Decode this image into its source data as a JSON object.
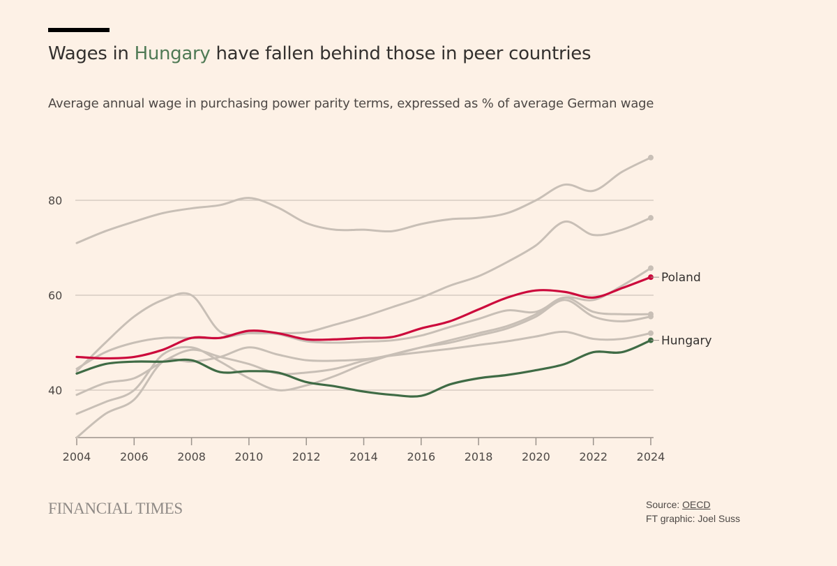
{
  "header": {
    "title_pre": "Wages in ",
    "title_highlight": "Hungary",
    "title_post": " have fallen behind those in peer countries",
    "subtitle": "Average annual wage in purchasing power parity terms, expressed as % of average German wage"
  },
  "footer": {
    "logo": "FINANCIAL TIMES",
    "source_label": "Source: ",
    "source_link": "OECD",
    "credit": "FT graphic: Joel Suss"
  },
  "chart_data": {
    "type": "line",
    "title": "Wages in Hungary have fallen behind those in peer countries",
    "subtitle": "Average annual wage in purchasing power parity terms, expressed as % of average German wage",
    "x": [
      2004,
      2005,
      2006,
      2007,
      2008,
      2009,
      2010,
      2011,
      2012,
      2013,
      2014,
      2015,
      2016,
      2017,
      2018,
      2019,
      2020,
      2021,
      2022,
      2023,
      2024
    ],
    "xticks": [
      "2004",
      "2006",
      "2008",
      "2010",
      "2012",
      "2014",
      "2016",
      "2018",
      "2020",
      "2022",
      "2024"
    ],
    "yticks": [
      "40",
      "60",
      "80"
    ],
    "ylim": [
      30,
      90
    ],
    "grid": true,
    "colors": {
      "highlight_hungary": "#3f6b45",
      "highlight_poland": "#cc0a3c",
      "other": "#c8bfb6",
      "title_highlight": "#4f7a55"
    },
    "series": [
      {
        "values": [
          71,
          73.5,
          75.5,
          77.3,
          78.3,
          79,
          80.5,
          78.5,
          75.2,
          73.8,
          73.8,
          73.5,
          75,
          76,
          76.3,
          77.3,
          80,
          83.3,
          82,
          86,
          89
        ]
      },
      {
        "values": [
          44,
          50,
          55.5,
          59,
          60,
          52.3,
          52,
          52,
          52.2,
          53.8,
          55.5,
          57.5,
          59.5,
          62,
          64,
          67,
          70.5,
          75.5,
          72.7,
          73.8,
          76.3
        ]
      },
      {
        "values": [
          44.5,
          48,
          50,
          51,
          51,
          51,
          52,
          51.8,
          50.3,
          50,
          50.2,
          50.5,
          51.5,
          53.3,
          55,
          56.8,
          56.5,
          59.5,
          59,
          62,
          65.7
        ]
      },
      {
        "values": [
          39,
          41.5,
          42.5,
          46,
          48.5,
          47,
          45.5,
          43.5,
          43.7,
          44.5,
          46.2,
          47.5,
          49,
          50.5,
          52,
          53.5,
          56,
          59.5,
          56.5,
          56,
          56
        ]
      },
      {
        "values": [
          35,
          37.5,
          40,
          47.5,
          49,
          46,
          42.5,
          40,
          41,
          43,
          45.5,
          47.5,
          49,
          50,
          51.5,
          53,
          55.5,
          59,
          55.5,
          54.5,
          55.5
        ]
      },
      {
        "values": [
          30,
          35,
          38,
          46,
          46,
          47,
          49,
          47.5,
          46.3,
          46.2,
          46.5,
          47.3,
          48,
          48.7,
          49.5,
          50.3,
          51.3,
          52.3,
          50.8,
          50.8,
          52
        ]
      },
      {
        "name": "Poland",
        "highlight": "poland",
        "values": [
          47,
          46.7,
          47,
          48.5,
          51,
          51,
          52.5,
          52,
          50.7,
          50.7,
          51,
          51.2,
          53,
          54.5,
          57,
          59.5,
          61,
          60.7,
          59.5,
          61.5,
          63.8
        ]
      },
      {
        "name": "Hungary",
        "highlight": "hungary",
        "values": [
          43.5,
          45.5,
          46,
          46,
          46.3,
          43.8,
          44,
          43.7,
          41.7,
          40.8,
          39.7,
          39,
          38.8,
          41.2,
          42.5,
          43.2,
          44.2,
          45.5,
          48,
          48,
          50.5
        ]
      }
    ]
  }
}
